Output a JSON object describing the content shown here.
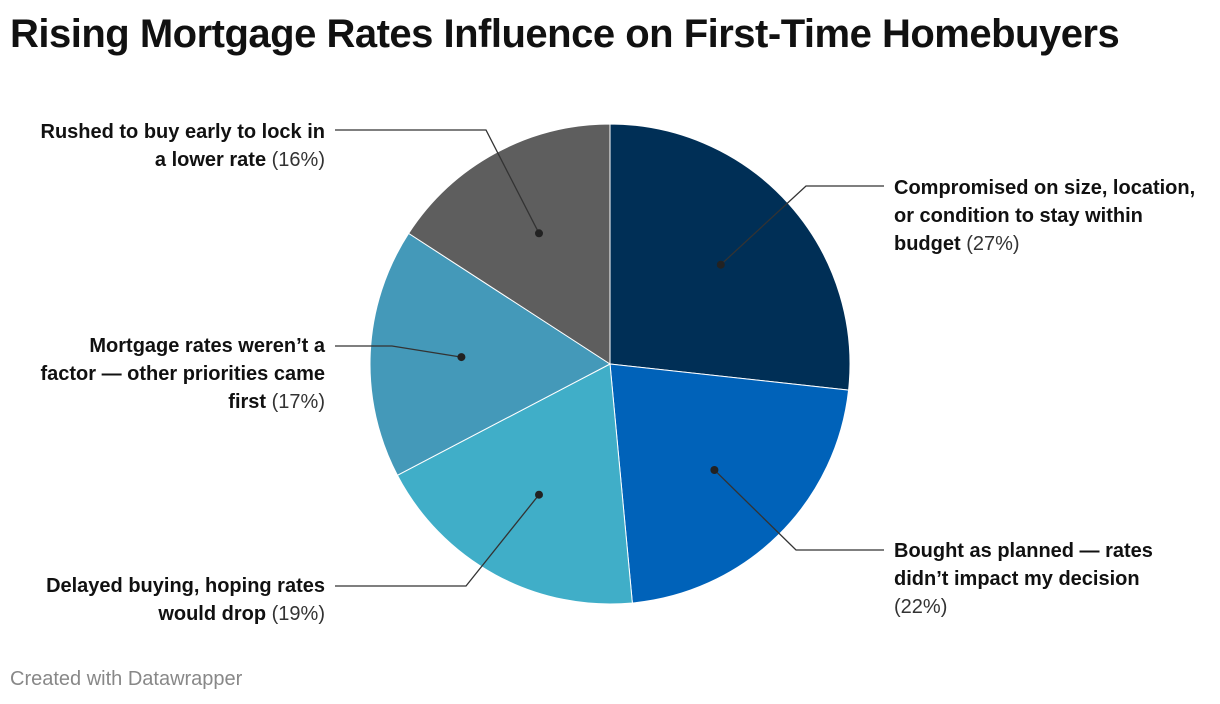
{
  "chart_data": {
    "type": "pie",
    "title": "Rising Mortgage Rates Influence on First-Time Homebuyers",
    "slices": [
      {
        "label": "Compromised on size, location, or condition to stay within budget",
        "value": 27,
        "display": "(27%)",
        "color": "#002f56"
      },
      {
        "label": "Bought as planned — rates didn’t impact my decision",
        "value": 22,
        "display": "(22%)",
        "color": "#0062b9"
      },
      {
        "label": "Delayed buying, hoping rates would drop",
        "value": 19,
        "display": "(19%)",
        "color": "#40aec8"
      },
      {
        "label": "Mortgage rates weren’t a factor — other priorities came first",
        "value": 17,
        "display": "(17%)",
        "color": "#4499b9"
      },
      {
        "label": "Rushed to buy early to lock in a lower rate",
        "value": 16,
        "display": "(16%)",
        "color": "#5e5e5e"
      }
    ]
  },
  "footer": "Created with Datawrapper"
}
